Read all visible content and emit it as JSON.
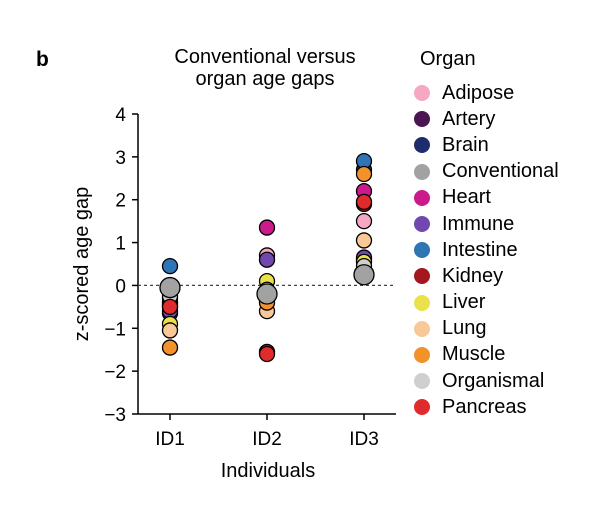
{
  "panel_letter": "b",
  "chart_data": {
    "type": "scatter",
    "title": "Conventional versus\norgan age gaps",
    "xlabel": "Individuals",
    "ylabel": "z-scored age gap",
    "categories": [
      "ID1",
      "ID2",
      "ID3"
    ],
    "ylim": [
      -3,
      4
    ],
    "yticks": [
      4,
      3,
      2,
      1,
      0,
      -1,
      -2,
      -3
    ],
    "reference_line": {
      "y": 0,
      "style": "dashed"
    },
    "grid": false,
    "legend": {
      "title": "Organ",
      "placement": "right"
    },
    "series": [
      {
        "name": "Adipose",
        "color": "#f6a8c2",
        "values": [
          -0.5,
          0.7,
          1.5
        ]
      },
      {
        "name": "Artery",
        "color": "#4a1550",
        "values": [
          -0.4,
          -0.2,
          0.6
        ]
      },
      {
        "name": "Brain",
        "color": "#1f2d6c",
        "values": [
          -0.45,
          -0.25,
          2.7
        ]
      },
      {
        "name": "Conventional",
        "color": "#a2a2a2",
        "values": [
          -0.05,
          -0.2,
          0.25
        ]
      },
      {
        "name": "Heart",
        "color": "#cc1a8c",
        "values": [
          -0.65,
          1.35,
          2.2
        ]
      },
      {
        "name": "Immune",
        "color": "#7048b0",
        "values": [
          -0.6,
          0.6,
          0.65
        ]
      },
      {
        "name": "Intestine",
        "color": "#2f74b5",
        "values": [
          0.45,
          -0.15,
          2.9
        ]
      },
      {
        "name": "Kidney",
        "color": "#a5171e",
        "values": [
          -0.3,
          -1.55,
          1.9
        ]
      },
      {
        "name": "Liver",
        "color": "#ebe14c",
        "values": [
          -0.9,
          0.1,
          0.55
        ]
      },
      {
        "name": "Lung",
        "color": "#f9c897",
        "values": [
          -1.05,
          -0.6,
          1.05
        ]
      },
      {
        "name": "Muscle",
        "color": "#f3922b",
        "values": [
          -1.45,
          -0.4,
          2.6
        ]
      },
      {
        "name": "Organismal",
        "color": "#cfcfcf",
        "values": [
          -0.25,
          -0.1,
          0.45
        ]
      },
      {
        "name": "Pancreas",
        "color": "#e02b2d",
        "values": [
          -0.5,
          -1.6,
          1.95
        ]
      }
    ]
  }
}
